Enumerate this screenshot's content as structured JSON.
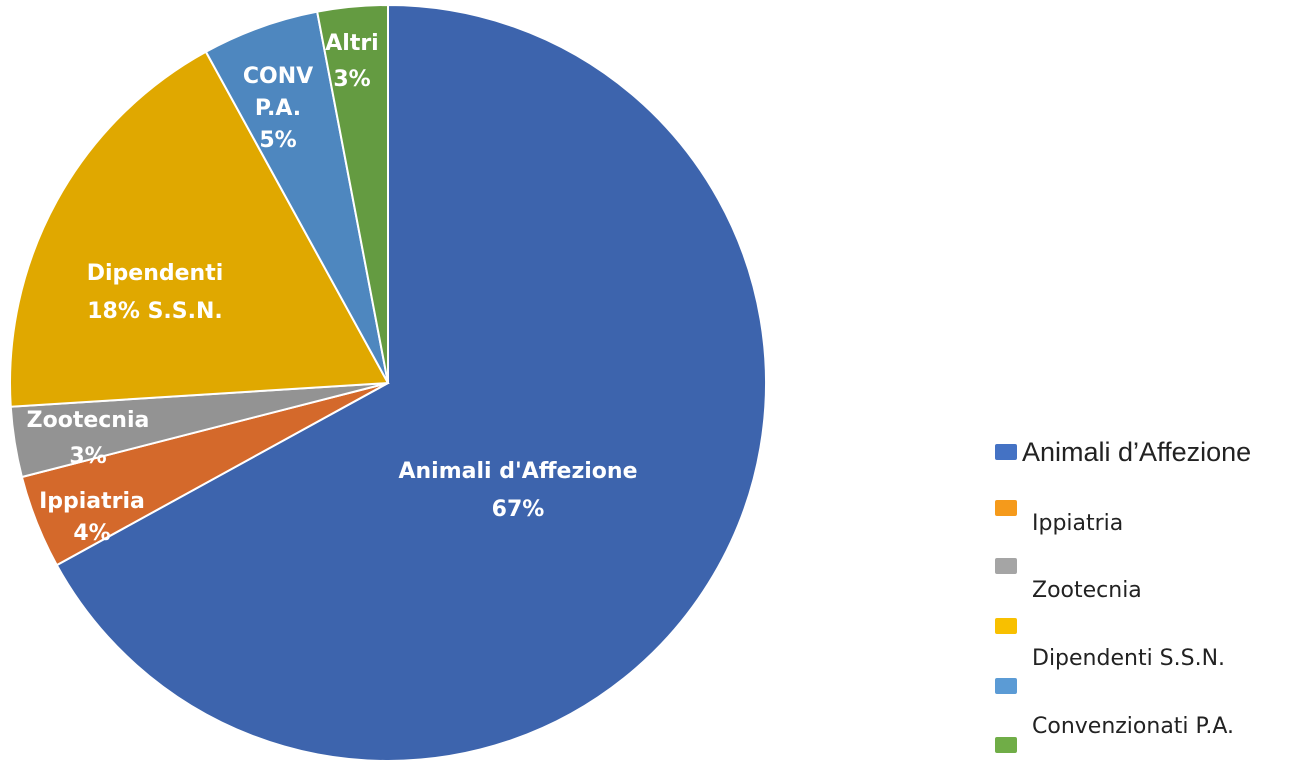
{
  "chart_data": {
    "type": "pie",
    "slices": [
      {
        "key": "animali",
        "label_lines": [
          "Animali d'Affezione",
          "67%"
        ],
        "value": 67,
        "color": "#3d64ad"
      },
      {
        "key": "ippiatria",
        "label_lines": [
          "Ippiatria",
          "4%"
        ],
        "value": 4,
        "color": "#d4692b"
      },
      {
        "key": "zootecnia",
        "label_lines": [
          "Zootecnia",
          "3%"
        ],
        "value": 3,
        "color": "#939393"
      },
      {
        "key": "dipendenti",
        "label_lines": [
          "Dipendenti",
          "18% S.S.N."
        ],
        "value": 18,
        "color": "#e0a800"
      },
      {
        "key": "conv",
        "label_lines": [
          "CONV",
          "P.A.",
          "5%"
        ],
        "value": 5,
        "color": "#4e87bf"
      },
      {
        "key": "altri",
        "label_lines": [
          "Altri",
          "3%"
        ],
        "value": 3,
        "color": "#649b41"
      }
    ],
    "legend": {
      "placement": "right",
      "entries": [
        {
          "label": "Animali d’Affezione",
          "color": "#4472c4"
        },
        {
          "label": "Ippiatria",
          "color": "#f59a1b"
        },
        {
          "label": "Zootecnia",
          "color": "#a5a5a5"
        },
        {
          "label": "Dipendenti S.S.N.",
          "color": "#f8c000"
        },
        {
          "label": "Convenzionati P.A.",
          "color": "#5b9bd5"
        },
        {
          "label": "",
          "color": "#70ad47"
        }
      ]
    }
  }
}
